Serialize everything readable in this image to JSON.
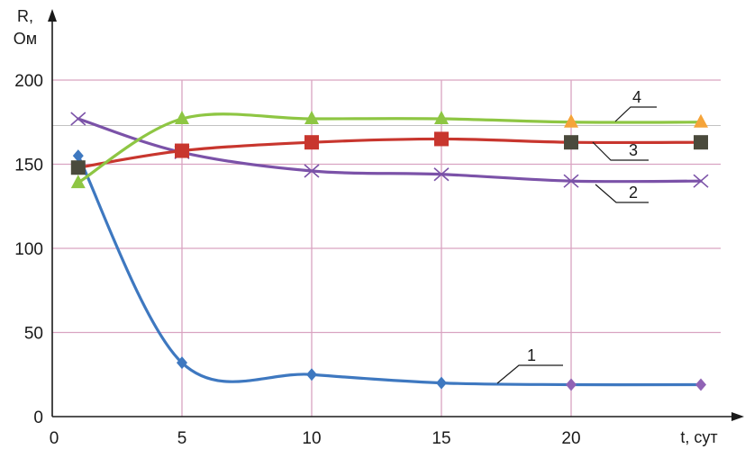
{
  "chart_data": {
    "type": "line",
    "ylabel_lines": [
      "R,",
      "Ом"
    ],
    "xlabel": "t, сут",
    "x_ticks": [
      0,
      5,
      10,
      15,
      20
    ],
    "y_ticks": [
      0,
      50,
      100,
      150,
      200
    ],
    "xlim": [
      0,
      25
    ],
    "ylim": [
      0,
      200
    ],
    "grid": true,
    "legend": "none",
    "colors": {
      "grid": "#d9a3c1",
      "axis": "#1a1a1a",
      "series1": "#3e78c0",
      "series2": "#7b52a8",
      "series3": "#c8362e",
      "series4": "#8ec643",
      "marker_late_1": "#9063b5",
      "marker_late_4": "#f5a43a",
      "marker_3": "#4a4a3c"
    },
    "series": [
      {
        "name": "1",
        "marker": "diamond",
        "x": [
          1,
          5,
          10,
          15,
          20,
          25
        ],
        "values": [
          155,
          32,
          25,
          20,
          19,
          19
        ]
      },
      {
        "name": "2",
        "marker": "x",
        "x": [
          1,
          5,
          10,
          15,
          20,
          25
        ],
        "values": [
          177,
          157,
          146,
          144,
          140,
          140
        ]
      },
      {
        "name": "3",
        "marker": "square",
        "x": [
          1,
          5,
          10,
          15,
          20,
          25
        ],
        "values": [
          148,
          158,
          163,
          165,
          163,
          163
        ]
      },
      {
        "name": "4",
        "marker": "triangle",
        "x": [
          1,
          5,
          10,
          15,
          20,
          25
        ],
        "values": [
          139,
          177,
          177,
          177,
          175,
          175
        ]
      }
    ]
  }
}
